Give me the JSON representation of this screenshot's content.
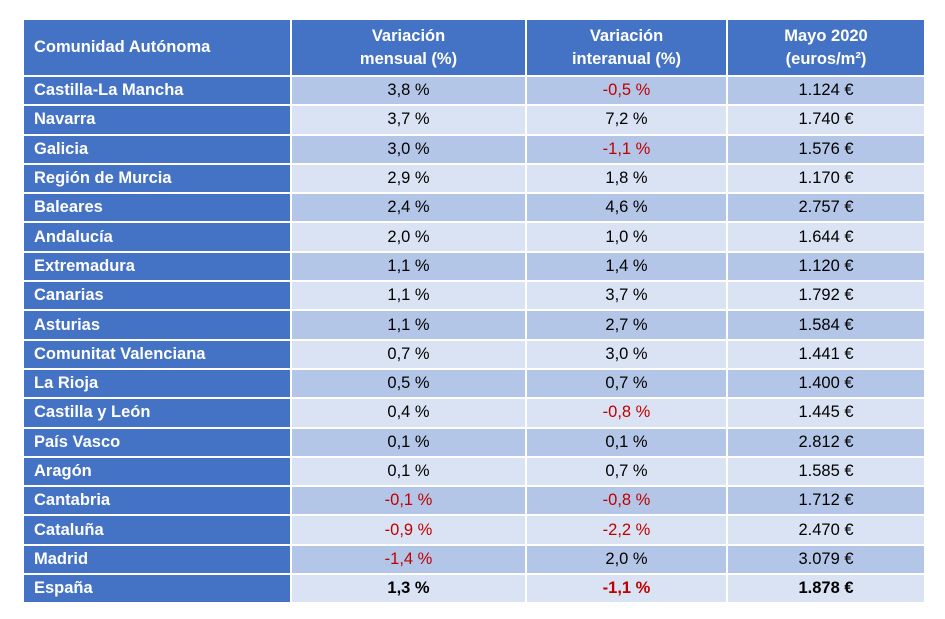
{
  "table": {
    "headers": {
      "region": "Comunidad Autónoma",
      "monthly": [
        "Variación",
        "mensual (%)"
      ],
      "annual": [
        "Variación",
        "interanual (%)"
      ],
      "price": [
        "Mayo 2020",
        "(euros/m²)"
      ]
    },
    "rows": [
      {
        "region": "Castilla-La Mancha",
        "monthly": "3,8 %",
        "annual": "-0,5 %",
        "price": "1.124 €"
      },
      {
        "region": "Navarra",
        "monthly": "3,7 %",
        "annual": "7,2 %",
        "price": "1.740 €"
      },
      {
        "region": "Galicia",
        "monthly": "3,0 %",
        "annual": "-1,1 %",
        "price": "1.576 €"
      },
      {
        "region": "Región de Murcia",
        "monthly": "2,9 %",
        "annual": "1,8 %",
        "price": "1.170 €"
      },
      {
        "region": "Baleares",
        "monthly": "2,4 %",
        "annual": "4,6 %",
        "price": "2.757 €"
      },
      {
        "region": "Andalucía",
        "monthly": "2,0 %",
        "annual": "1,0 %",
        "price": "1.644 €"
      },
      {
        "region": "Extremadura",
        "monthly": "1,1 %",
        "annual": "1,4 %",
        "price": "1.120 €"
      },
      {
        "region": "Canarias",
        "monthly": "1,1 %",
        "annual": "3,7 %",
        "price": "1.792 €"
      },
      {
        "region": "Asturias",
        "monthly": "1,1 %",
        "annual": "2,7 %",
        "price": "1.584 €"
      },
      {
        "region": "Comunitat Valenciana",
        "monthly": "0,7 %",
        "annual": "3,0 %",
        "price": "1.441 €"
      },
      {
        "region": "La Rioja",
        "monthly": "0,5 %",
        "annual": "0,7 %",
        "price": "1.400 €"
      },
      {
        "region": "Castilla y León",
        "monthly": "0,4 %",
        "annual": "-0,8 %",
        "price": "1.445 €"
      },
      {
        "region": "País Vasco",
        "monthly": "0,1 %",
        "annual": "0,1 %",
        "price": "2.812 €"
      },
      {
        "region": "Aragón",
        "monthly": "0,1 %",
        "annual": "0,7 %",
        "price": "1.585 €"
      },
      {
        "region": "Cantabria",
        "monthly": "-0,1 %",
        "annual": "-0,8 %",
        "price": "1.712 €"
      },
      {
        "region": "Cataluña",
        "monthly": "-0,9 %",
        "annual": "-2,2 %",
        "price": "2.470 €"
      },
      {
        "region": "Madrid",
        "monthly": "-1,4 %",
        "annual": "2,0 %",
        "price": "3.079 €"
      }
    ],
    "total": {
      "region": "España",
      "monthly": "1,3 %",
      "annual": "-1,1 %",
      "price": "1.878 €"
    }
  },
  "colors": {
    "header_bg": "#4472c4",
    "row_odd": "#b4c6e7",
    "row_even": "#dae3f3",
    "negative": "#c00000"
  }
}
